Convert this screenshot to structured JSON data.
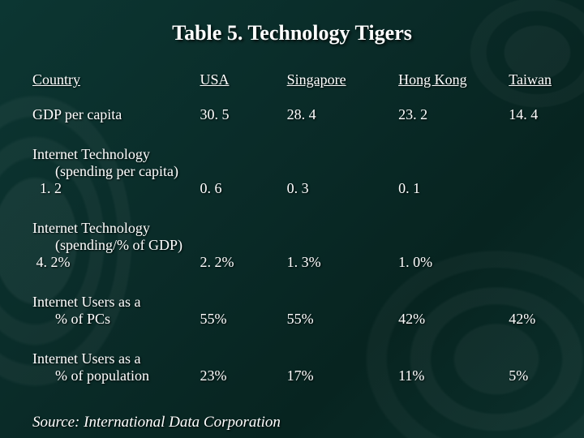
{
  "title": "Table 5. Technology Tigers",
  "table": {
    "type": "table",
    "text_color": "#ffffff",
    "background_color": "#0a2c29",
    "title_fontsize": 26,
    "body_fontsize": 18,
    "font_family": "Times New Roman",
    "columns": [
      "Country",
      "USA",
      "Singapore",
      "Hong Kong",
      "Taiwan"
    ],
    "rows": [
      {
        "label": "GDP per capita",
        "values": [
          "30. 5",
          "28. 4",
          "23. 2",
          "14. 4"
        ]
      },
      {
        "label_line1": "Internet Technology",
        "label_line2": "(spending per capita)",
        "values": [
          "1. 2",
          "0. 6",
          "0. 3",
          "0. 1"
        ]
      },
      {
        "label_line1": "Internet Technology",
        "label_line2": "(spending/% of GDP)",
        "values": [
          "4. 2%",
          "2. 2%",
          "1. 3%",
          "1. 0%"
        ]
      },
      {
        "label_line1": "Internet Users as a",
        "label_line2": "% of PCs",
        "values": [
          "55%",
          "55%",
          "42%",
          "42%"
        ]
      },
      {
        "label_line1": "Internet Users as a",
        "label_line2": "% of population",
        "values": [
          "23%",
          "17%",
          "11%",
          "5%"
        ]
      }
    ]
  },
  "source": "Source: International Data Corporation"
}
